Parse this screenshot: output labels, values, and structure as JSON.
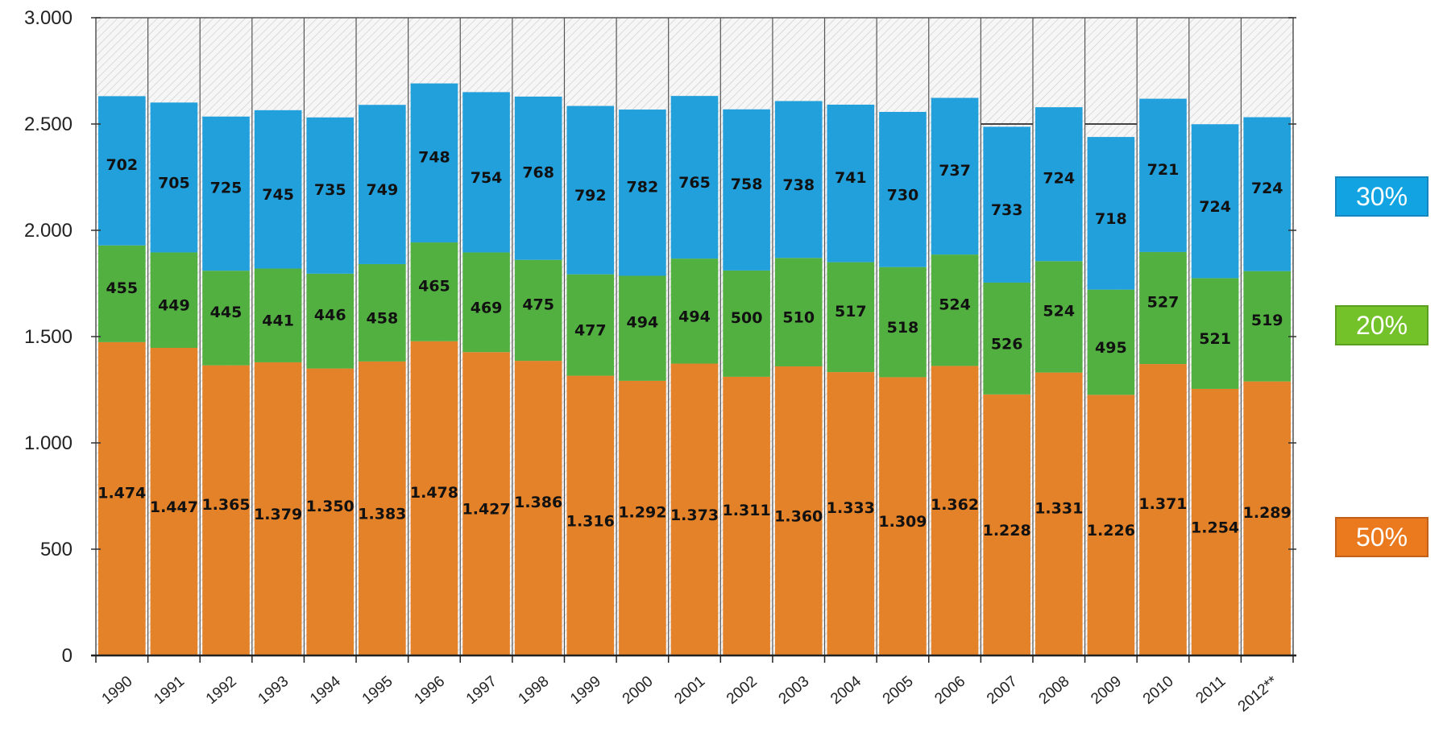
{
  "chart_data": {
    "type": "bar",
    "stacked": true,
    "title": "",
    "xlabel": "",
    "ylabel": "",
    "ylim": [
      0,
      3000
    ],
    "yticks": [
      0,
      500,
      1000,
      1500,
      2000,
      2500,
      3000
    ],
    "ytick_labels": [
      "0",
      "500",
      "1.000",
      "1.500",
      "2.000",
      "2.500",
      "3.000"
    ],
    "grid": false,
    "categories": [
      "1990",
      "1991",
      "1992",
      "1993",
      "1994",
      "1995",
      "1996",
      "1997",
      "1998",
      "1999",
      "2000",
      "2001",
      "2002",
      "2003",
      "2004",
      "2005",
      "2006",
      "2007",
      "2008",
      "2009",
      "2010",
      "2011",
      "2012**"
    ],
    "series": [
      {
        "color": "#E4822A",
        "values": [
          1474,
          1447,
          1365,
          1379,
          1350,
          1383,
          1478,
          1427,
          1386,
          1316,
          1292,
          1373,
          1311,
          1360,
          1333,
          1309,
          1362,
          1228,
          1331,
          1226,
          1371,
          1254,
          1289
        ],
        "labels": [
          "1.474",
          "1.447",
          "1.365",
          "1.379",
          "1.350",
          "1.383",
          "1.478",
          "1.427",
          "1.386",
          "1.316",
          "1.292",
          "1.373",
          "1.311",
          "1.360",
          "1.333",
          "1.309",
          "1.362",
          "1.228",
          "1.331",
          "1.226",
          "1.371",
          "1.254",
          "1.289"
        ]
      },
      {
        "color": "#52B041",
        "values": [
          455,
          449,
          445,
          441,
          446,
          458,
          465,
          469,
          475,
          477,
          494,
          494,
          500,
          510,
          517,
          518,
          524,
          526,
          524,
          495,
          527,
          521,
          519
        ],
        "labels": [
          "455",
          "449",
          "445",
          "441",
          "446",
          "458",
          "465",
          "469",
          "475",
          "477",
          "494",
          "494",
          "500",
          "510",
          "517",
          "518",
          "524",
          "526",
          "524",
          "495",
          "527",
          "521",
          "519"
        ]
      },
      {
        "color": "#22A0DB",
        "values": [
          702,
          705,
          725,
          745,
          735,
          749,
          748,
          754,
          768,
          792,
          782,
          765,
          758,
          738,
          741,
          730,
          737,
          733,
          724,
          718,
          721,
          724,
          724
        ],
        "labels": [
          "702",
          "705",
          "725",
          "745",
          "735",
          "749",
          "748",
          "754",
          "768",
          "792",
          "782",
          "765",
          "758",
          "738",
          "741",
          "730",
          "737",
          "733",
          "724",
          "718",
          "721",
          "724",
          "724"
        ]
      }
    ],
    "reference_lines": [
      {
        "value": 2500,
        "categories": [
          "2007",
          "2009"
        ]
      }
    ],
    "annotations": [
      {
        "text": "30%",
        "color": "#12A4E2",
        "border": "#1686BE"
      },
      {
        "text": "20%",
        "color": "#73C229",
        "border": "#5C9E20"
      },
      {
        "text": "50%",
        "color": "#EB7A1F",
        "border": "#C0601A"
      }
    ]
  }
}
